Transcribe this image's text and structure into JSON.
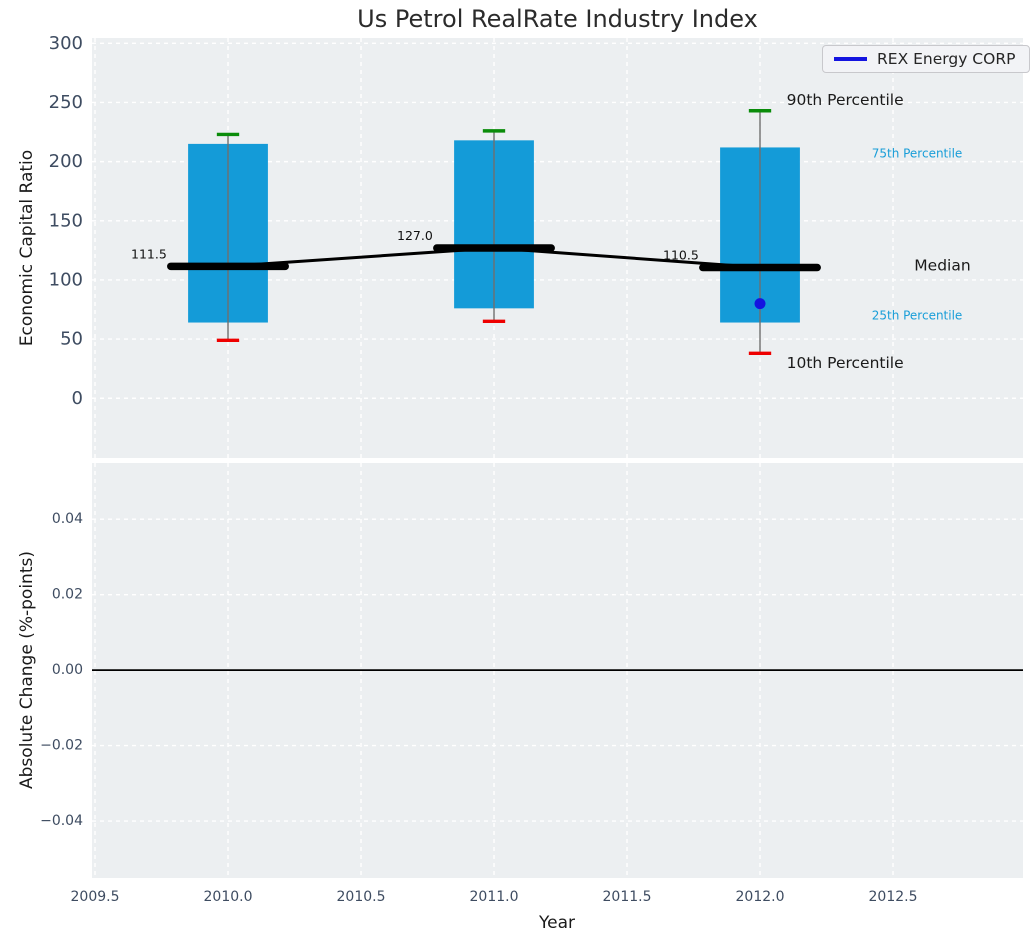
{
  "chart_data": [
    {
      "type": "boxplot",
      "title": "Us Petrol RealRate Industry Index",
      "ylabel": "Economic Capital Ratio",
      "ylim": [
        -50.5,
        304.5
      ],
      "ytick_values": [
        0,
        50,
        100,
        150,
        200,
        250,
        300
      ],
      "ytick_labels": [
        "0",
        "50",
        "100",
        "150",
        "200",
        "250",
        "300"
      ],
      "grid": true,
      "legend": {
        "label": "REX Energy CORP",
        "position": "upper right"
      },
      "boxes": [
        {
          "x": 2010,
          "p10": 49,
          "p25": 64,
          "median": 111.5,
          "p75": 215,
          "p90": 223,
          "median_label": "111.5"
        },
        {
          "x": 2011,
          "p10": 65,
          "p25": 76,
          "median": 127.0,
          "p75": 218,
          "p90": 226,
          "median_label": "127.0"
        },
        {
          "x": 2012,
          "p10": 38,
          "p25": 64,
          "median": 110.5,
          "p75": 212,
          "p90": 243,
          "median_label": "110.5"
        }
      ],
      "company_point": {
        "series": "REX Energy CORP",
        "x": 2012,
        "y": 80
      },
      "annotations": [
        {
          "text": "90th Percentile",
          "x": 2012.1,
          "y": 252,
          "style": "large-dark"
        },
        {
          "text": "75th Percentile",
          "x": 2012.42,
          "y": 207,
          "style": "small-accent"
        },
        {
          "text": "Median",
          "x": 2012.58,
          "y": 112,
          "style": "large-dark"
        },
        {
          "text": "25th Percentile",
          "x": 2012.42,
          "y": 70,
          "style": "small-accent"
        },
        {
          "text": "10th Percentile",
          "x": 2012.1,
          "y": 30,
          "style": "large-dark"
        }
      ]
    },
    {
      "type": "line",
      "ylabel": "Absolute Change (%-points)",
      "ylim": [
        -0.0551,
        0.0549
      ],
      "ytick_values": [
        0.04,
        0.02,
        0,
        -0.02,
        -0.04
      ],
      "ytick_labels": [
        "0.04",
        "0.02",
        "0.00",
        "−0.02",
        "−0.04"
      ],
      "zero_line": 0.0,
      "grid": true
    }
  ],
  "x_axis": {
    "label": "Year",
    "xlim": [
      2009.4887,
      2012.9887
    ],
    "tick_values": [
      2009.5,
      2010.0,
      2010.5,
      2011.0,
      2011.5,
      2012.0,
      2012.5
    ],
    "tick_labels": [
      "2009.5",
      "2010.0",
      "2010.5",
      "2011.0",
      "2011.5",
      "2012.0",
      "2012.5"
    ]
  },
  "colors": {
    "box_fill": "#149bd8",
    "cap_90th": "#0a8c0a",
    "cap_10th": "#ee0000",
    "whisker": "#6f6f6f",
    "median_line": "#000000",
    "company": "#1414e0",
    "accent_text": "#189dd8",
    "dark_text": "#1a1a1a",
    "tick_text": "#3e4c61",
    "axes_bg": "#eceff1",
    "grid": "#ffffff"
  }
}
